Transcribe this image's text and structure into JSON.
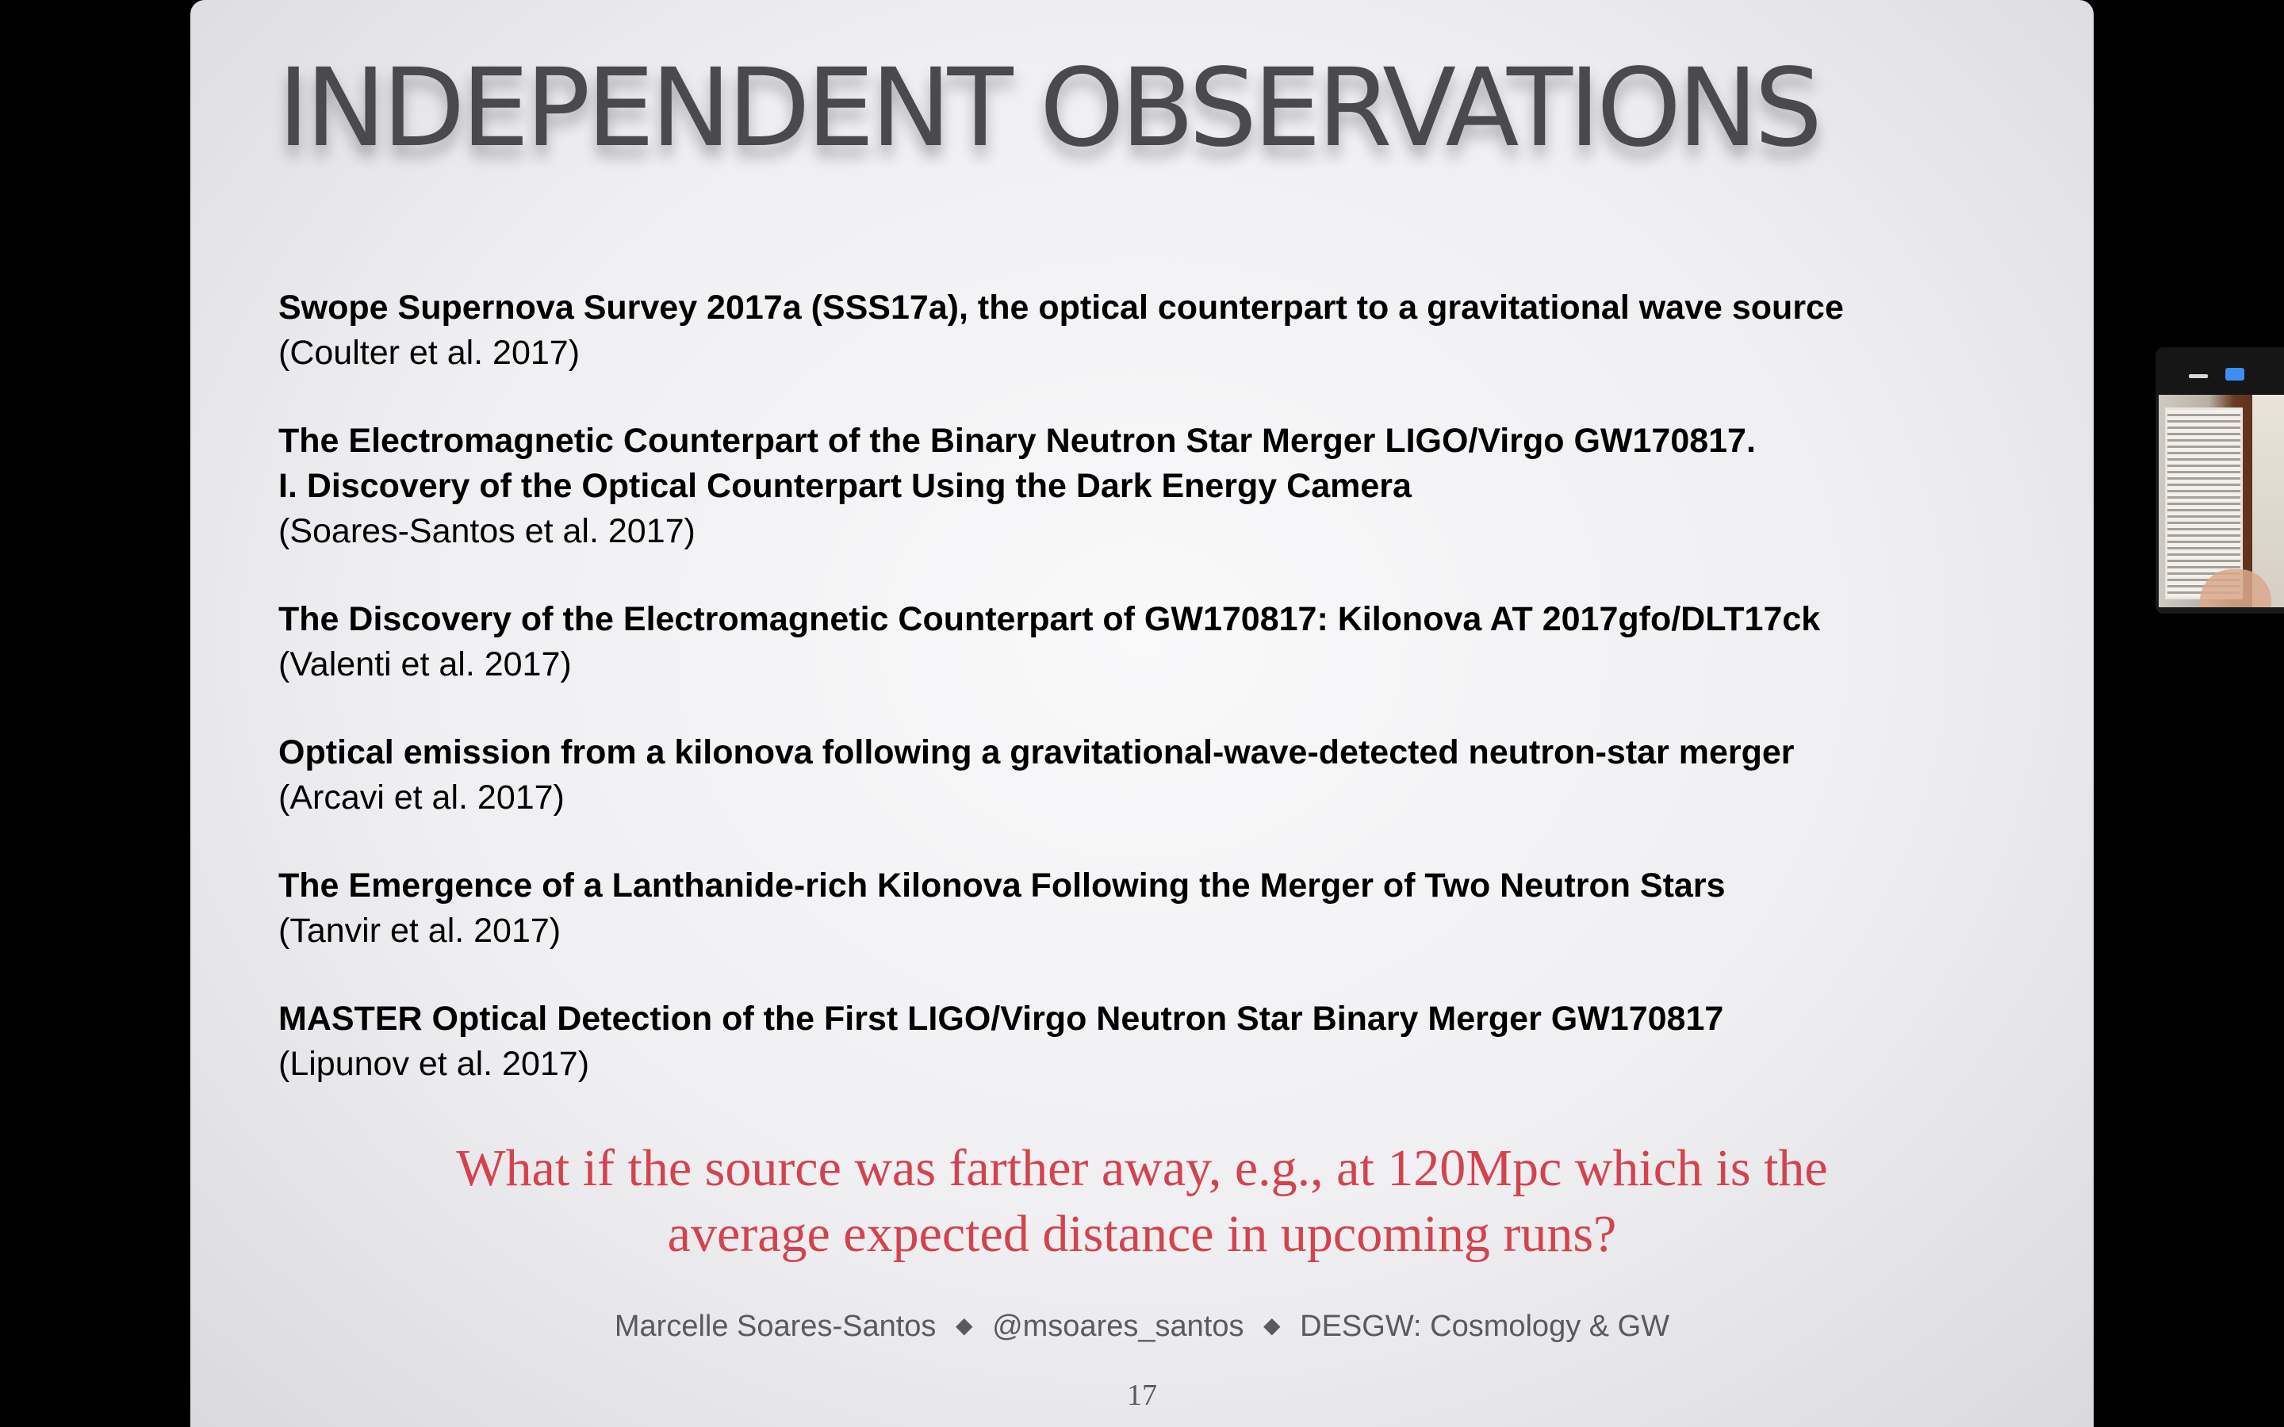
{
  "slide": {
    "title": "INDEPENDENT OBSERVATIONS",
    "references": [
      {
        "title": "Swope Supernova Survey 2017a (SSS17a), the optical counterpart to a gravitational wave source",
        "citation": "(Coulter et al. 2017)"
      },
      {
        "title": "The Electromagnetic Counterpart of the Binary Neutron Star Merger LIGO/Virgo GW170817.\nI. Discovery of the Optical Counterpart Using the Dark Energy Camera",
        "citation": "(Soares-Santos et al. 2017)"
      },
      {
        "title": "The Discovery of the Electromagnetic Counterpart of GW170817: Kilonova AT 2017gfo/DLT17ck",
        "citation": "(Valenti et al. 2017)"
      },
      {
        "title": "Optical emission from a kilonova following a gravitational-wave-detected neutron-star merger",
        "citation": "(Arcavi et al. 2017)"
      },
      {
        "title": "The Emergence of a Lanthanide-rich Kilonova Following the Merger of Two Neutron Stars",
        "citation": "(Tanvir et al. 2017)"
      },
      {
        "title": "MASTER Optical Detection of the First LIGO/Virgo Neutron Star Binary Merger GW170817",
        "citation": "(Lipunov et al. 2017)"
      }
    ],
    "question": {
      "line1": "What if the source was farther away, e.g., at 120Mpc which is the",
      "line2": "average expected distance in upcoming runs?"
    },
    "footer": {
      "author": "Marcelle Soares-Santos",
      "separator": "◆",
      "handle": "@msoares_santos",
      "talk": "DESGW: Cosmology & GW"
    },
    "page_number": "17"
  },
  "video_panel": {
    "minimize_icon": "minimize-icon",
    "restore_icon": "restore-icon",
    "accent": "#3b8ff0"
  },
  "colors": {
    "question_text": "#d3434d",
    "title_text": "#4a4a4c",
    "background": "#000000"
  }
}
